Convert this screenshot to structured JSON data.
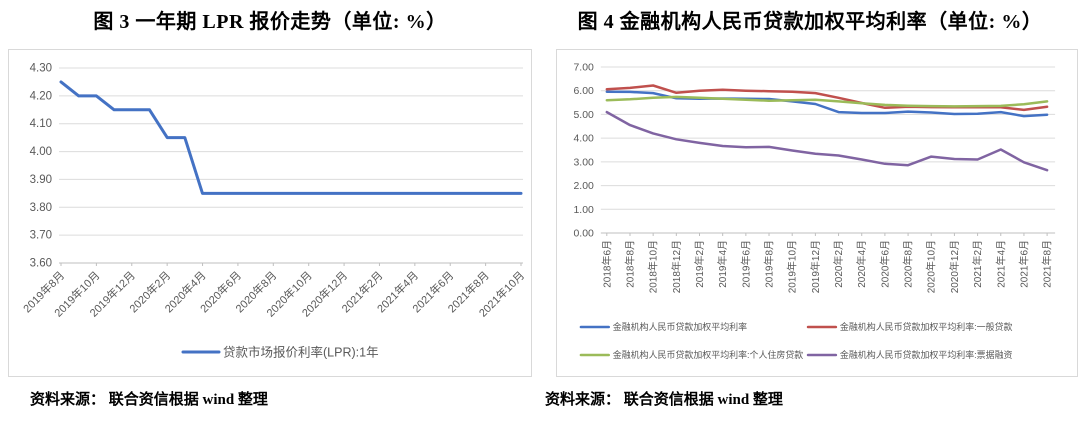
{
  "header": {
    "left_title": "图 3  一年期 LPR 报价走势（单位: %）",
    "right_title": "图 4  金融机构人民币贷款加权平均利率（单位: %）"
  },
  "footer": {
    "left_source": "资料来源： 联合资信根据 wind 整理",
    "right_source": "资料来源： 联合资信根据 wind 整理"
  },
  "colors": {
    "blue": "#4472C4",
    "red": "#C0504D",
    "green": "#9BBB59",
    "purple": "#8064A2",
    "gridline": "#dcdcdc",
    "axis": "#bfbfbf",
    "tick_text": "#595959"
  },
  "chart_data": [
    {
      "type": "line",
      "title": "图3 一年期LPR报价走势",
      "unit": "%",
      "ylabel": "",
      "xlabel": "",
      "ylim": [
        3.6,
        4.3
      ],
      "ytick_step": 0.1,
      "grid": true,
      "legend_position": "bottom-center",
      "x_label_every": 2,
      "x_label_rotation": -45,
      "categories": [
        "2019年8月",
        "2019年9月",
        "2019年10月",
        "2019年11月",
        "2019年12月",
        "2020年1月",
        "2020年2月",
        "2020年3月",
        "2020年4月",
        "2020年5月",
        "2020年6月",
        "2020年7月",
        "2020年8月",
        "2020年9月",
        "2020年10月",
        "2020年11月",
        "2020年12月",
        "2021年1月",
        "2021年2月",
        "2021年3月",
        "2021年4月",
        "2021年5月",
        "2021年6月",
        "2021年7月",
        "2021年8月",
        "2021年9月",
        "2021年10月"
      ],
      "series": [
        {
          "name": "贷款市场报价利率(LPR):1年",
          "color": "#4472C4",
          "values": [
            4.25,
            4.2,
            4.2,
            4.15,
            4.15,
            4.15,
            4.05,
            4.05,
            3.85,
            3.85,
            3.85,
            3.85,
            3.85,
            3.85,
            3.85,
            3.85,
            3.85,
            3.85,
            3.85,
            3.85,
            3.85,
            3.85,
            3.85,
            3.85,
            3.85,
            3.85,
            3.85
          ]
        }
      ]
    },
    {
      "type": "line",
      "title": "图4 金融机构人民币贷款加权平均利率",
      "unit": "%",
      "ylabel": "",
      "xlabel": "",
      "ylim": [
        0.0,
        7.0
      ],
      "ytick_step": 1.0,
      "grid": true,
      "legend_position": "bottom-two-columns",
      "x_label_every": 1,
      "x_label_rotation": -90,
      "categories": [
        "2018年6月",
        "2018年8月",
        "2018年10月",
        "2018年12月",
        "2019年2月",
        "2019年4月",
        "2019年6月",
        "2019年8月",
        "2019年10月",
        "2019年12月",
        "2020年2月",
        "2020年4月",
        "2020年6月",
        "2020年8月",
        "2020年10月",
        "2020年12月",
        "2021年2月",
        "2021年4月",
        "2021年6月",
        "2021年8月"
      ],
      "series": [
        {
          "name": "金融机构人民币贷款加权平均利率",
          "color": "#4472C4",
          "values": [
            5.96,
            5.95,
            5.9,
            5.68,
            5.66,
            5.67,
            5.66,
            5.65,
            5.55,
            5.44,
            5.1,
            5.06,
            5.06,
            5.12,
            5.08,
            5.02,
            5.03,
            5.1,
            4.93,
            4.99
          ]
        },
        {
          "name": "金融机构人民币贷款加权平均利率:一般贷款",
          "color": "#C0504D",
          "values": [
            6.06,
            6.12,
            6.22,
            5.91,
            6.0,
            6.04,
            6.0,
            5.98,
            5.96,
            5.9,
            5.7,
            5.48,
            5.28,
            5.32,
            5.31,
            5.3,
            5.3,
            5.3,
            5.19,
            5.32
          ]
        },
        {
          "name": "金融机构人民币贷款加权平均利率:个人住房贷款",
          "color": "#9BBB59",
          "values": [
            5.6,
            5.64,
            5.7,
            5.74,
            5.7,
            5.66,
            5.62,
            5.58,
            5.6,
            5.62,
            5.55,
            5.47,
            5.4,
            5.37,
            5.35,
            5.34,
            5.35,
            5.36,
            5.43,
            5.55
          ]
        },
        {
          "name": "金融机构人民币贷款加权平均利率:票据融资",
          "color": "#8064A2",
          "values": [
            5.1,
            4.55,
            4.2,
            3.95,
            3.8,
            3.67,
            3.62,
            3.63,
            3.48,
            3.34,
            3.27,
            3.1,
            2.92,
            2.86,
            3.22,
            3.12,
            3.1,
            3.52,
            2.98,
            2.65
          ]
        }
      ]
    }
  ]
}
